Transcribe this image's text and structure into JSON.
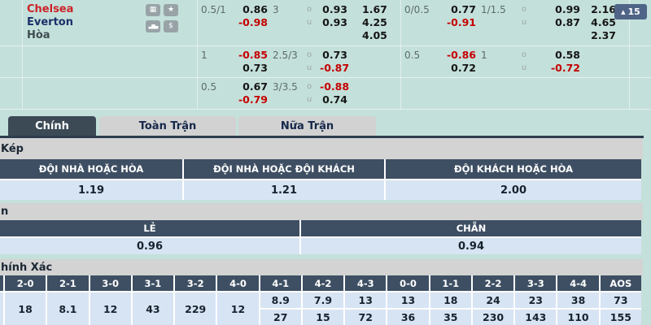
{
  "top": {
    "teams": {
      "home": "Chelsea",
      "away": "Everton",
      "draw": "Hòa"
    },
    "icons": {
      "stats": "▦",
      "star": "★",
      "chart": "▃▆▄",
      "dollar": "$"
    },
    "more": {
      "arrow": "▲",
      "count": "15"
    },
    "ou_sign": {
      "over": "o",
      "under": "u"
    },
    "rows": [
      {
        "l": {
          "hdp": "0.5/1",
          "h1": "0.86",
          "h2": "-0.98",
          "tot": "3",
          "o": "0.93",
          "u": "0.93",
          "x1": "1.67",
          "x2": "4.25",
          "x3": "4.05"
        },
        "r": {
          "hdp": "0/0.5",
          "h1": "0.77",
          "h2": "-0.91",
          "tot": "1/1.5",
          "o": "0.99",
          "u": "0.87",
          "x1": "2.16",
          "x2": "4.65",
          "x3": "2.37"
        }
      },
      {
        "l": {
          "hdp": "1",
          "h1": "-0.85",
          "h2": "0.73",
          "tot": "2.5/3",
          "o": "0.73",
          "u": "-0.87"
        },
        "r": {
          "hdp": "0.5",
          "h1": "-0.86",
          "h2": "0.72",
          "tot": "1",
          "o": "0.58",
          "u": "-0.72"
        }
      },
      {
        "l": {
          "hdp": "0.5",
          "h1": "0.67",
          "h2": "-0.79",
          "tot": "3/3.5",
          "o": "-0.88",
          "u": "0.74"
        },
        "r": {}
      }
    ]
  },
  "tabs": [
    {
      "label": "Chính"
    },
    {
      "label": "Toàn Trận"
    },
    {
      "label": "Nữa Trận"
    }
  ],
  "kep": {
    "title": "Kép",
    "headers": [
      "ĐỘI NHÀ HOẶC HÒA",
      "ĐỘI NHÀ HOẶC ĐỘI KHÁCH",
      "ĐỘI KHÁCH HOẶC HÒA"
    ],
    "values": [
      "1.19",
      "1.21",
      "2.00"
    ]
  },
  "odd_even": {
    "title": "n",
    "headers": [
      "LẺ",
      "CHẴN"
    ],
    "values": [
      "0.96",
      "0.94"
    ]
  },
  "correct_score": {
    "title": "hính Xác",
    "headers": [
      "2-0",
      "2-1",
      "3-0",
      "3-1",
      "3-2",
      "4-0",
      "4-1",
      "4-2",
      "4-3",
      "0-0",
      "1-1",
      "2-2",
      "3-3",
      "4-4",
      "AOS"
    ],
    "row1": [
      "8.9",
      "7.9",
      "13",
      "13",
      "18",
      "24",
      "23",
      "38",
      "73"
    ],
    "row2": [
      "27",
      "15",
      "72",
      "36",
      "35",
      "230",
      "143",
      "110",
      "155"
    ],
    "merged": [
      "18",
      "8.1",
      "12",
      "43",
      "229",
      "12"
    ]
  },
  "colors": {
    "teal_bg": "#c4e0da",
    "accent_red": "#c40000",
    "header_navy": "#3e4f63",
    "row_blue": "#d7e4f4",
    "tab_dark": "#3c4a56",
    "button_blue": "#4f6487"
  }
}
